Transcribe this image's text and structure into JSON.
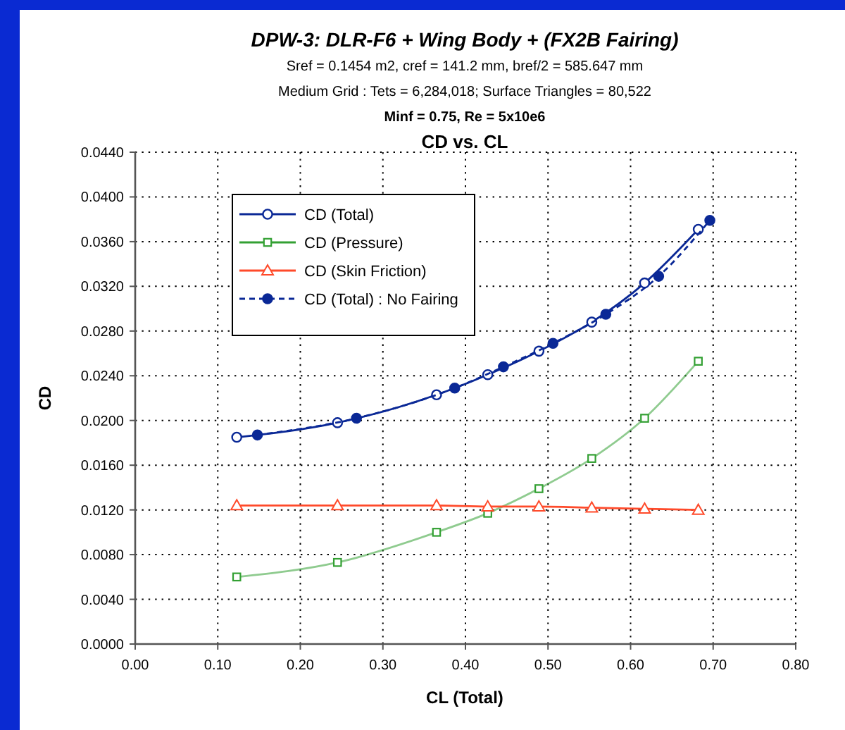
{
  "chart_data": {
    "type": "line",
    "title": "DPW-3: DLR-F6 + Wing Body + (FX2B Fairing)",
    "subtitle": "Sref = 0.1454 m2, cref = 141.2 mm, bref/2 = 585.647 mm\nMedium Grid : Tets = 6,284,018; Surface Triangles = 80,522",
    "annotations": [
      "Minf = 0.75, Re = 5x10e6",
      "CD vs. CL"
    ],
    "xlabel": "CL (Total)",
    "ylabel": "CD",
    "xlim": [
      0,
      0.8
    ],
    "xticks": [
      {
        "value": 0,
        "label": "0.00"
      },
      {
        "value": 0.1,
        "label": "0.10"
      },
      {
        "value": 0.2,
        "label": "0.20"
      },
      {
        "value": 0.3,
        "label": "0.30"
      },
      {
        "value": 0.4,
        "label": "0.40"
      },
      {
        "value": 0.5,
        "label": "0.50"
      },
      {
        "value": 0.6,
        "label": "0.60"
      },
      {
        "value": 0.7,
        "label": "0.70"
      },
      {
        "value": 0.8,
        "label": "0.80"
      }
    ],
    "ylim": [
      0,
      0.044
    ],
    "yticks": [
      {
        "value": 0,
        "label": "0.0000"
      },
      {
        "value": 0.004,
        "label": "0.0040"
      },
      {
        "value": 0.008,
        "label": "0.0080"
      },
      {
        "value": 0.012,
        "label": "0.0120"
      },
      {
        "value": 0.016,
        "label": "0.0160"
      },
      {
        "value": 0.02,
        "label": "0.0200"
      },
      {
        "value": 0.024,
        "label": "0.0240"
      },
      {
        "value": 0.028,
        "label": "0.0280"
      },
      {
        "value": 0.032,
        "label": "0.0320"
      },
      {
        "value": 0.036,
        "label": "0.0360"
      },
      {
        "value": 0.04,
        "label": "0.0400"
      },
      {
        "value": 0.044,
        "label": "0.0440"
      }
    ],
    "grid": true,
    "legend": "top left",
    "series": [
      {
        "name": "CD (Total)",
        "color": "#0a2896",
        "marker": "circle",
        "line_style": "solid",
        "x": [
          0.123,
          0.245,
          0.365,
          0.427,
          0.489,
          0.553,
          0.617,
          0.682
        ],
        "values": [
          0.0185,
          0.0198,
          0.0223,
          0.0241,
          0.0262,
          0.0288,
          0.0323,
          0.0371
        ]
      },
      {
        "name": "CD (Pressure)",
        "color": "#33a033",
        "marker": "square",
        "line_style": "solid",
        "x": [
          0.123,
          0.245,
          0.365,
          0.427,
          0.489,
          0.553,
          0.617,
          0.682
        ],
        "values": [
          0.006,
          0.0073,
          0.01,
          0.0117,
          0.0139,
          0.0166,
          0.0202,
          0.0253
        ]
      },
      {
        "name": "CD (Skin Friction)",
        "color": "#ff4a2a",
        "marker": "triangle",
        "line_style": "solid",
        "x": [
          0.123,
          0.245,
          0.365,
          0.427,
          0.489,
          0.553,
          0.617,
          0.682
        ],
        "values": [
          0.0124,
          0.0124,
          0.0124,
          0.0123,
          0.0123,
          0.0122,
          0.0121,
          0.012
        ]
      },
      {
        "name": "CD (Total) : No Fairing",
        "color": "#0a2896",
        "marker": "circle",
        "line_style": "dashed",
        "x": [
          0.148,
          0.268,
          0.387,
          0.446,
          0.506,
          0.57,
          0.634,
          0.696
        ],
        "values": [
          0.0187,
          0.0202,
          0.0229,
          0.0248,
          0.0269,
          0.0295,
          0.0329,
          0.0379
        ]
      }
    ]
  }
}
